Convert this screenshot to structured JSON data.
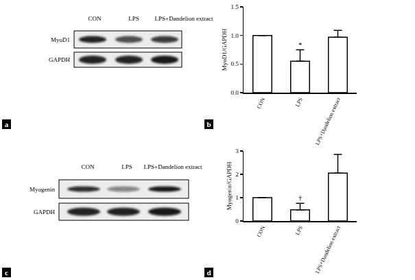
{
  "panel_labels": [
    "a",
    "b",
    "c",
    "d"
  ],
  "blots": [
    {
      "lanes": [
        "CON",
        "LPS",
        "LPS+Dandelion extract"
      ],
      "rows": [
        "MyoD1",
        "GAPDH"
      ]
    },
    {
      "lanes": [
        "CON",
        "LPS",
        "LPS+Dandelion extract"
      ],
      "rows": [
        "Myogenin",
        "GAPDH"
      ]
    }
  ],
  "chart_data": [
    {
      "type": "bar",
      "categories": [
        "CON",
        "LPS",
        "LPS+Dandelion extract"
      ],
      "values": [
        1,
        0.55,
        0.97
      ],
      "errors": [
        0,
        0.2,
        0.12
      ],
      "color": "#ffffff",
      "ylabel": "MyoD1/GAPDH",
      "ylim": [
        0,
        1.5
      ],
      "yticks": [
        {
          "value": 0,
          "label": "0.0"
        },
        0.5,
        {
          "value": 1,
          "label": "1.0"
        },
        1.5
      ],
      "grid": false,
      "annotations": [
        {
          "x": "LPS",
          "y": 0.84,
          "text": "*"
        }
      ]
    },
    {
      "type": "bar",
      "categories": [
        "CON",
        "LPS",
        "LPS+Dandelion extract"
      ],
      "values": [
        1,
        0.48,
        2.05
      ],
      "errors": [
        0,
        0.28,
        0.8
      ],
      "color": "#ffffff",
      "ylabel": "Myogenin/GAPDH",
      "ylim": [
        0,
        3
      ],
      "yticks": [
        0,
        1,
        2,
        3
      ],
      "grid": false,
      "annotations": [
        {
          "x": "LPS",
          "y": 1.0,
          "text": "†"
        }
      ]
    }
  ]
}
